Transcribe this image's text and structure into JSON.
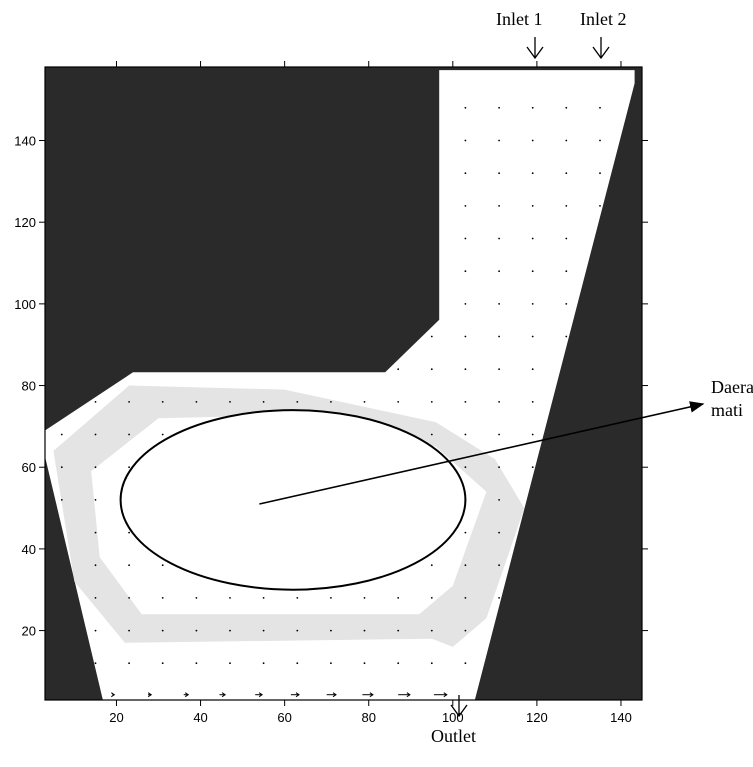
{
  "chart_data": {
    "type": "vector-field",
    "title": "",
    "xlabel": "",
    "ylabel": "",
    "xlim": [
      3,
      145
    ],
    "ylim": [
      3,
      158
    ],
    "x_ticks": [
      20,
      40,
      60,
      80,
      100,
      120,
      140
    ],
    "y_ticks": [
      20,
      40,
      60,
      80,
      100,
      120,
      140
    ],
    "background_color": "#2a2a2a",
    "domain_color": "#ffffff",
    "recirculation_color": "#e4e4e4",
    "domain_outline": [
      [
        97,
        157
      ],
      [
        143,
        157
      ],
      [
        143,
        154
      ],
      [
        105,
        3
      ],
      [
        17,
        3
      ],
      [
        2,
        68
      ],
      [
        24,
        83
      ],
      [
        84,
        83
      ],
      [
        97,
        96
      ]
    ],
    "vector_color": "#000000",
    "annotations": {
      "inlet_1": {
        "label": "Inlet 1",
        "x": 117,
        "y": 157
      },
      "inlet_2": {
        "label": "Inlet 2",
        "x": 135,
        "y": 157
      },
      "outlet": {
        "label": "Outlet",
        "x": 100,
        "y": 3
      },
      "dead_zone": {
        "label_line1": "Daerah",
        "label_line2": "mati",
        "cx": 62,
        "cy": 52,
        "rx": 41,
        "ry": 22,
        "arrow_from": [
          54,
          51
        ]
      }
    }
  }
}
